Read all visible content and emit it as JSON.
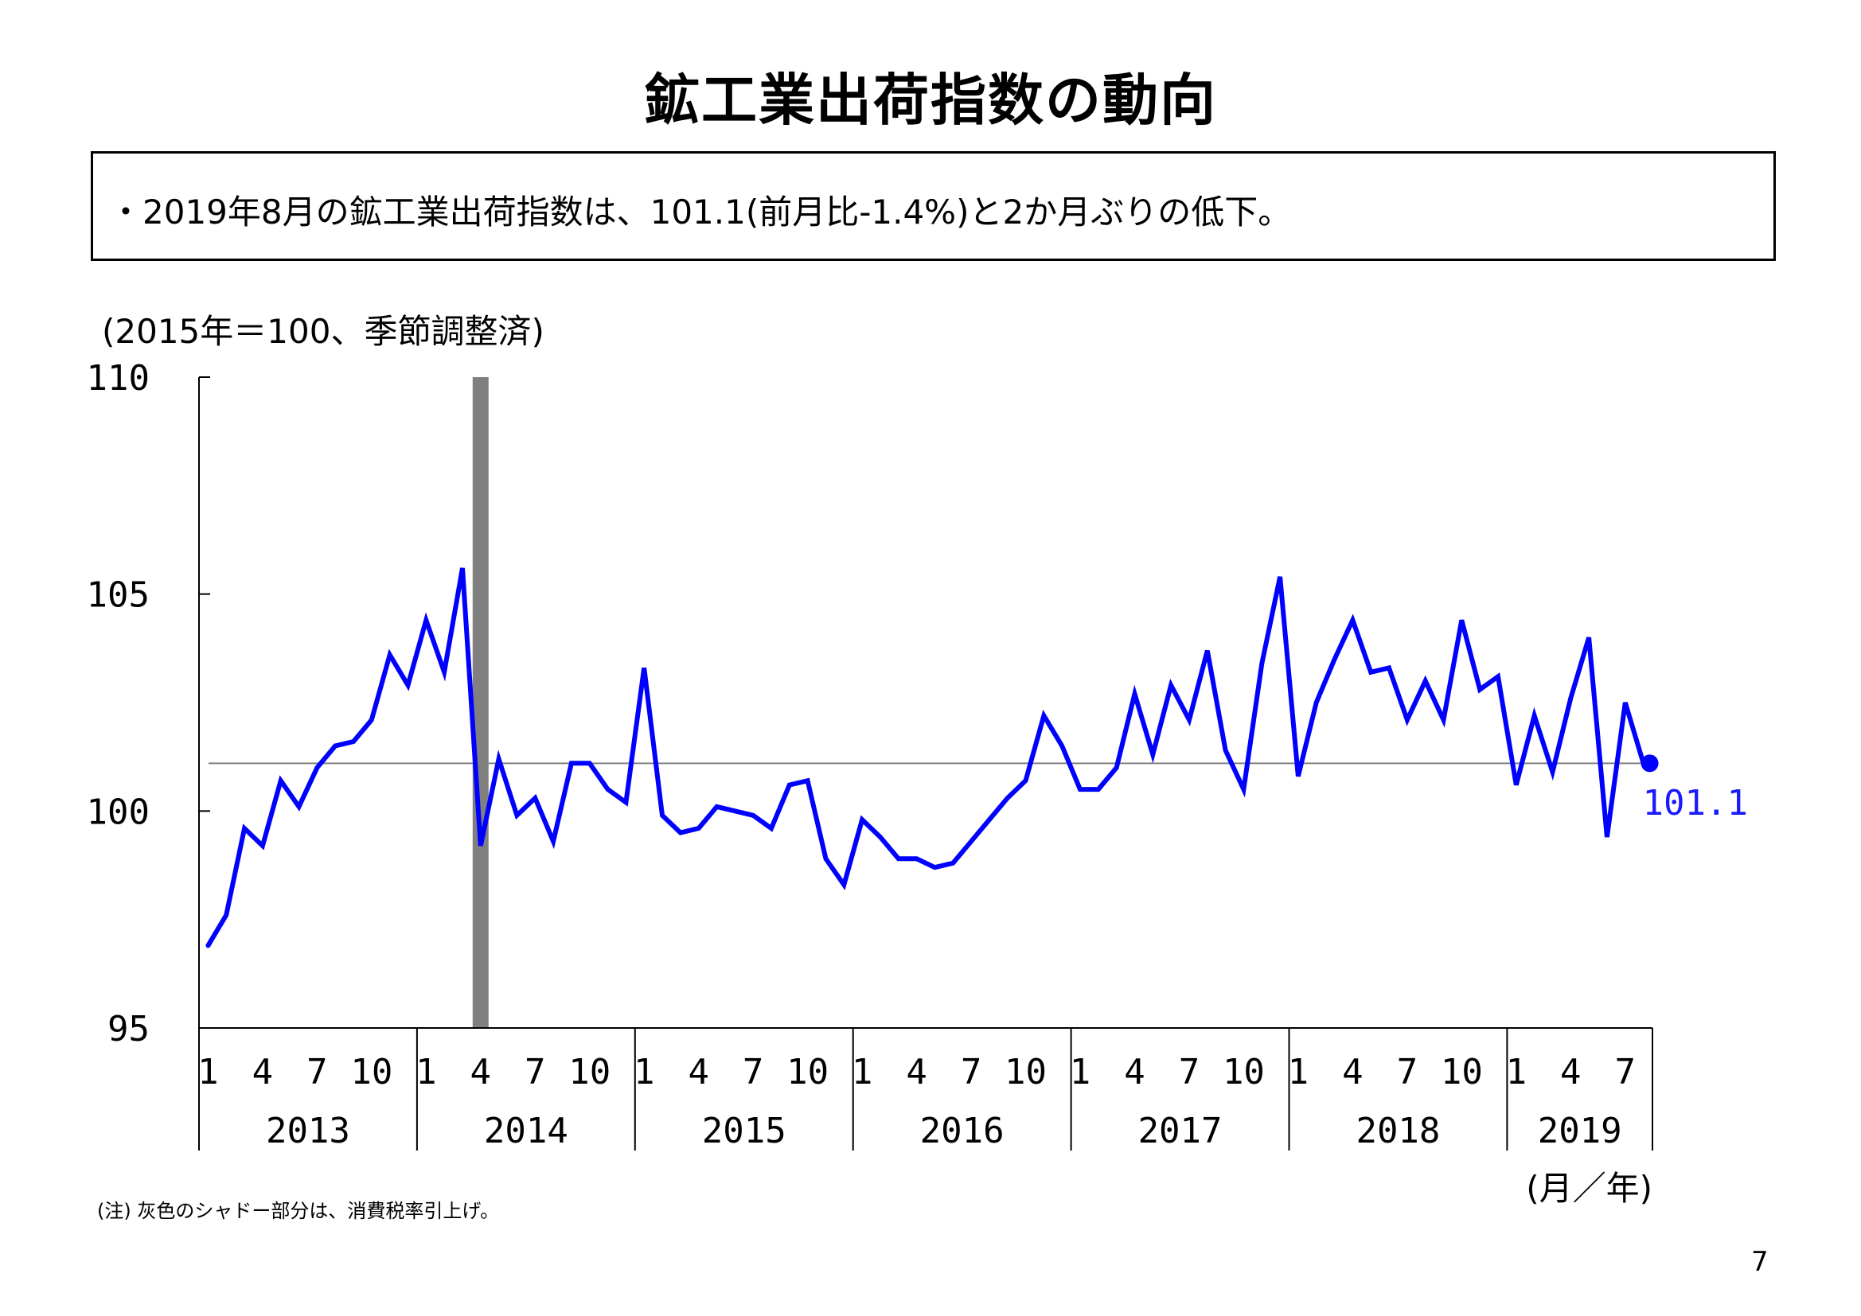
{
  "title": "鉱工業出荷指数の動向",
  "summary": "・2019年8月の鉱工業出荷指数は、101.1(前月比-1.4%)と2か月ぶりの低下。",
  "unit_note": "(2015年＝100、季節調整済)",
  "footnote": "(注) 灰色のシャドー部分は、消費税率引上げ。",
  "page_number": "7",
  "colors": {
    "line": "#0000ff",
    "shade": "#808080",
    "reference": "#808080",
    "axis": "#000000"
  },
  "chart_data": {
    "type": "line",
    "ylim": [
      95,
      110
    ],
    "yticks": [
      "95",
      "100",
      "105",
      "110"
    ],
    "xlabel": "(月／年)",
    "month_ticks": [
      "1",
      "4",
      "7",
      "10"
    ],
    "years": [
      "2013",
      "2014",
      "2015",
      "2016",
      "2017",
      "2018",
      "2019"
    ],
    "x": [
      "2013-01",
      "2013-02",
      "2013-03",
      "2013-04",
      "2013-05",
      "2013-06",
      "2013-07",
      "2013-08",
      "2013-09",
      "2013-10",
      "2013-11",
      "2013-12",
      "2014-01",
      "2014-02",
      "2014-03",
      "2014-04",
      "2014-05",
      "2014-06",
      "2014-07",
      "2014-08",
      "2014-09",
      "2014-10",
      "2014-11",
      "2014-12",
      "2015-01",
      "2015-02",
      "2015-03",
      "2015-04",
      "2015-05",
      "2015-06",
      "2015-07",
      "2015-08",
      "2015-09",
      "2015-10",
      "2015-11",
      "2015-12",
      "2016-01",
      "2016-02",
      "2016-03",
      "2016-04",
      "2016-05",
      "2016-06",
      "2016-07",
      "2016-08",
      "2016-09",
      "2016-10",
      "2016-11",
      "2016-12",
      "2017-01",
      "2017-02",
      "2017-03",
      "2017-04",
      "2017-05",
      "2017-06",
      "2017-07",
      "2017-08",
      "2017-09",
      "2017-10",
      "2017-11",
      "2017-12",
      "2018-01",
      "2018-02",
      "2018-03",
      "2018-04",
      "2018-05",
      "2018-06",
      "2018-07",
      "2018-08",
      "2018-09",
      "2018-10",
      "2018-11",
      "2018-12",
      "2019-01",
      "2019-02",
      "2019-03",
      "2019-04",
      "2019-05",
      "2019-06",
      "2019-07",
      "2019-08"
    ],
    "values": [
      96.9,
      97.6,
      99.6,
      99.2,
      100.7,
      100.1,
      101.0,
      101.5,
      101.6,
      102.1,
      103.6,
      102.9,
      104.4,
      103.2,
      105.6,
      99.2,
      101.2,
      99.9,
      100.3,
      99.3,
      101.1,
      101.1,
      100.5,
      100.2,
      103.3,
      99.9,
      99.5,
      99.6,
      100.1,
      100.0,
      99.9,
      99.6,
      100.6,
      100.7,
      98.9,
      98.3,
      99.8,
      99.4,
      98.9,
      98.9,
      98.7,
      98.8,
      99.3,
      99.8,
      100.3,
      100.7,
      102.2,
      101.5,
      100.5,
      100.5,
      101.0,
      102.7,
      101.3,
      102.9,
      102.1,
      103.7,
      101.4,
      100.5,
      103.4,
      105.4,
      100.8,
      102.5,
      103.5,
      104.4,
      103.2,
      103.3,
      102.1,
      103.0,
      102.1,
      104.4,
      102.8,
      103.1,
      100.6,
      102.2,
      100.9,
      102.6,
      104.0,
      99.4,
      102.5,
      101.1
    ],
    "shade_month": "2014-04",
    "reference_value": 101.1,
    "end_label": "101.1"
  }
}
